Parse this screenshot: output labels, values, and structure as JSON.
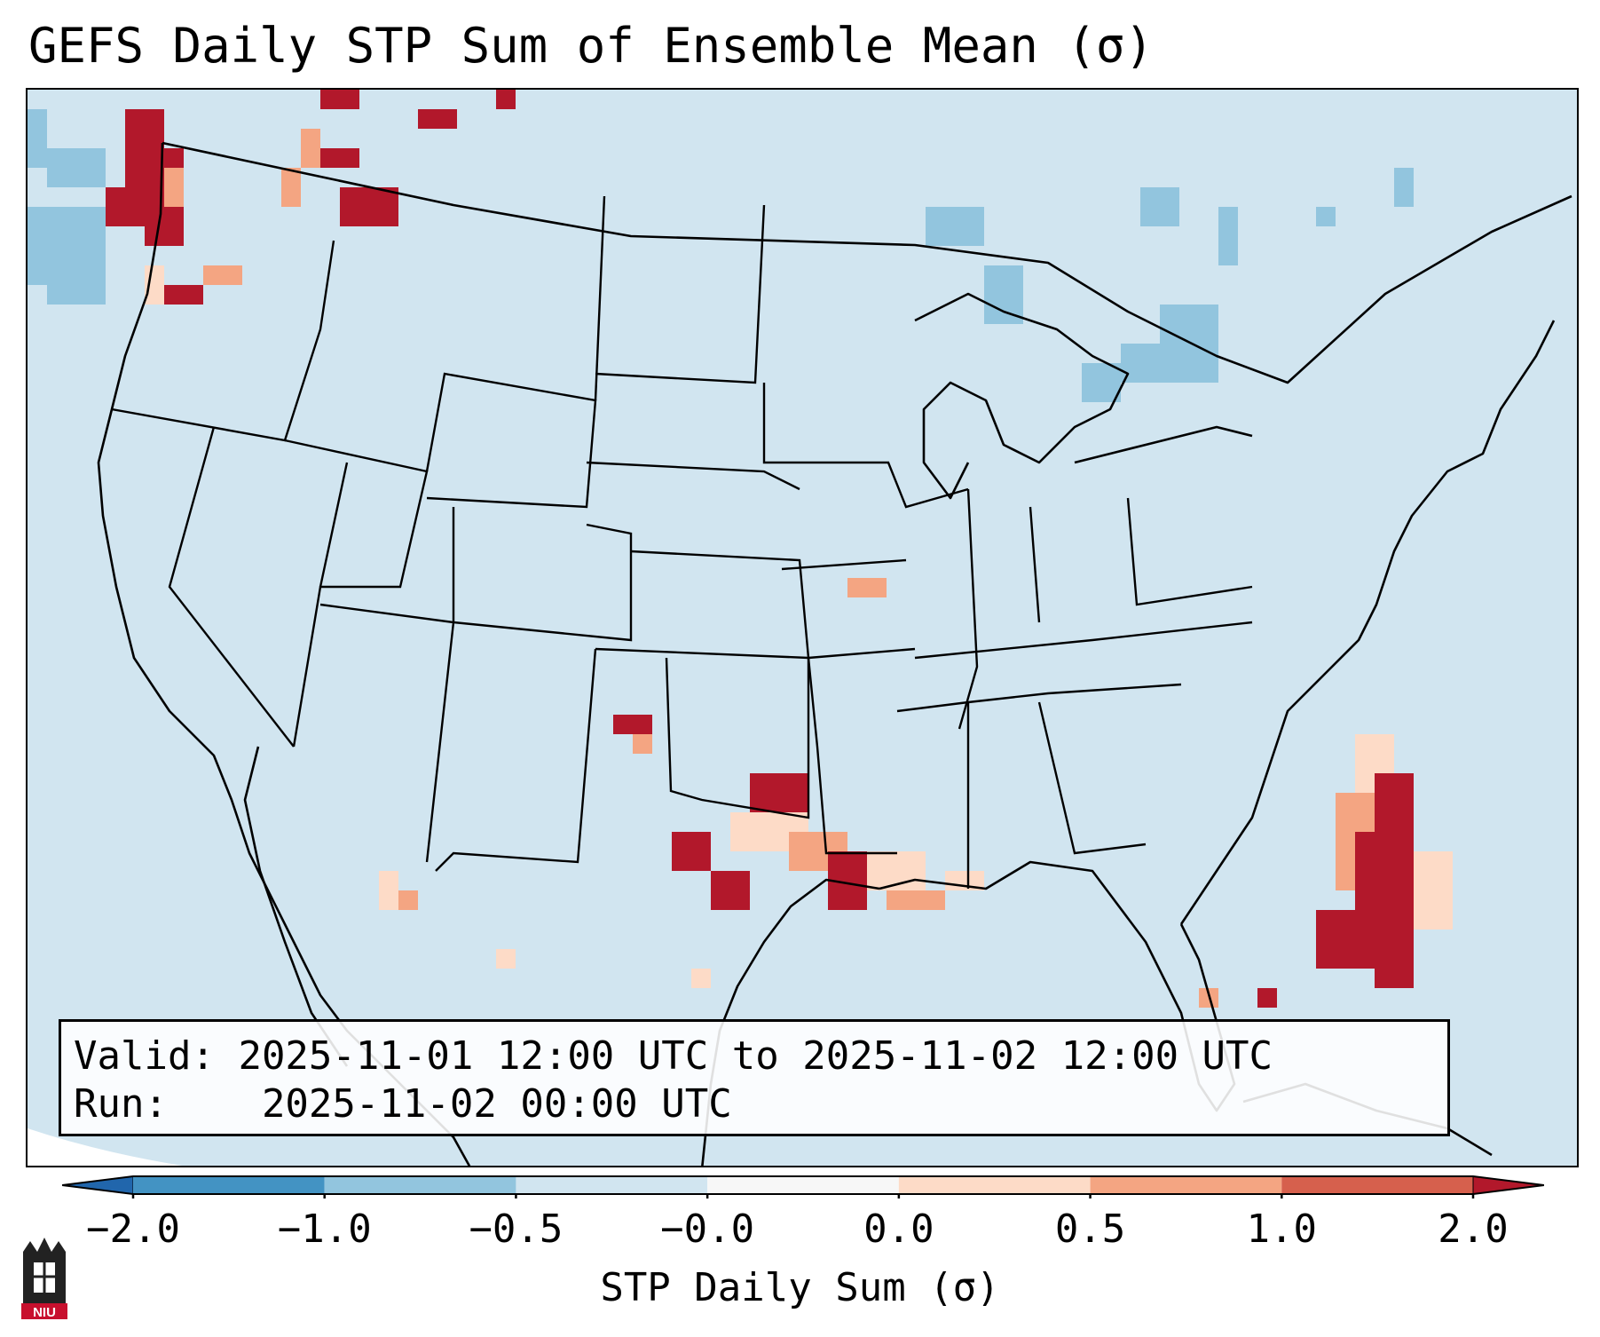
{
  "title": "GEFS Daily STP Sum of Ensemble Mean (σ)",
  "info": {
    "valid_label": "Valid:",
    "valid_value": "2025-11-01 12:00 UTC to 2025-11-02 12:00 UTC",
    "run_label": "Run:",
    "run_value": "2025-11-02 00:00 UTC"
  },
  "colorbar": {
    "label": "STP Daily Sum (σ)",
    "ticks": [
      "−2.0",
      "−1.0",
      "−0.5",
      "−0.0",
      "0.0",
      "0.5",
      "1.0",
      "2.0"
    ],
    "colors": [
      "#4393c3",
      "#92c5de",
      "#d1e5f0",
      "#f7f7f7",
      "#fddbc7",
      "#f4a582",
      "#d6604d"
    ],
    "under_color": "#2166ac",
    "over_color": "#b2182b"
  },
  "palette": {
    "ocean": "#d1e5f0",
    "neg_light": "#92c5de",
    "pos_light": "#fddbc7",
    "pos_mid": "#f4a582",
    "pos_strong": "#d6604d",
    "pos_max": "#b2182b"
  },
  "logo": {
    "text": "NIU"
  }
}
